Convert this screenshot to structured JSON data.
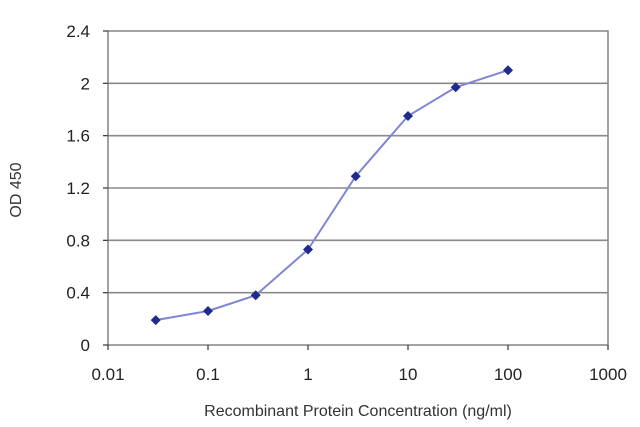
{
  "chart_data": {
    "type": "line",
    "title": "",
    "xlabel": "Recombinant Protein Concentration (ng/ml)",
    "ylabel": "OD 450",
    "x_scale": "log",
    "xlim": [
      0.01,
      1000
    ],
    "ylim": [
      0,
      2.4
    ],
    "x_ticks": [
      "0.01",
      "0.1",
      "1",
      "10",
      "100",
      "1000"
    ],
    "y_ticks": [
      "0",
      "0.4",
      "0.8",
      "1.2",
      "1.6",
      "2",
      "2.4"
    ],
    "grid": "horizontal",
    "series": [
      {
        "color": "#1e2a8c",
        "line_color": "#7f86d6",
        "marker": "diamond",
        "x": [
          0.03,
          0.1,
          0.3,
          1,
          3,
          10,
          30,
          100
        ],
        "y": [
          0.19,
          0.26,
          0.38,
          0.73,
          1.29,
          1.75,
          1.97,
          2.1
        ]
      }
    ]
  }
}
